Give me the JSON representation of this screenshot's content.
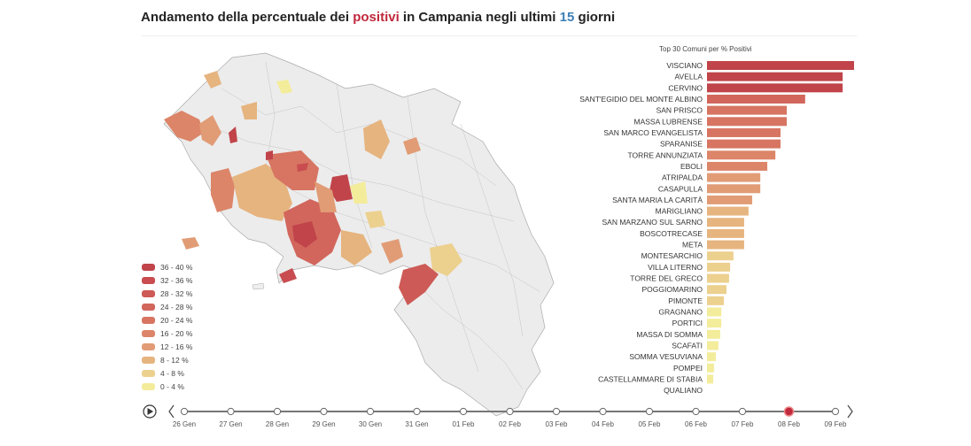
{
  "title": {
    "prefix": "Andamento della percentuale dei ",
    "highlight": "positivi",
    "middle": " in Campania negli ultimi ",
    "days": "15",
    "suffix": " giorni",
    "highlight_color": "#c0283c",
    "days_color": "#3d7fb5"
  },
  "legend": [
    {
      "label": "36 - 40 %",
      "color": "#c0444a"
    },
    {
      "label": "32 - 36 %",
      "color": "#c84c50"
    },
    {
      "label": "28 - 32 %",
      "color": "#cd5a56"
    },
    {
      "label": "24 - 28 %",
      "color": "#d2665c"
    },
    {
      "label": "20 - 24 %",
      "color": "#d77562"
    },
    {
      "label": "16 - 20 %",
      "color": "#dc8569"
    },
    {
      "label": "12 - 16 %",
      "color": "#e19c76"
    },
    {
      "label": "8 - 12 %",
      "color": "#e6b47f"
    },
    {
      "label": "4 - 8 %",
      "color": "#ecd08e"
    },
    {
      "label": "0 - 4 %",
      "color": "#f3ec9a"
    }
  ],
  "chart_data": {
    "type": "bar",
    "orientation": "horizontal",
    "title": "Top 30 Comuni per % Positivi",
    "xlabel": "",
    "ylabel": "",
    "xlim": [
      0,
      40
    ],
    "categories": [
      "VISCIANO",
      "AVELLA",
      "CERVINO",
      "SANT'EGIDIO DEL MONTE ALBINO",
      "SAN PRISCO",
      "MASSA LUBRENSE",
      "SAN MARCO EVANGELISTA",
      "SPARANISE",
      "TORRE ANNUNZIATA",
      "EBOLI",
      "ATRIPALDA",
      "CASAPULLA",
      "SANTA MARIA LA CARITÀ",
      "MARIGLIANO",
      "SAN MARZANO SUL SARNO",
      "BOSCOTRECASE",
      "META",
      "MONTESARCHIO",
      "VILLA LITERNO",
      "TORRE DEL GRECO",
      "POGGIOMARINO",
      "PIMONTE",
      "GRAGNANO",
      "PORTICI",
      "MASSA DI SOMMA",
      "SCAFATI",
      "SOMMA VESUVIANA",
      "POMPEI",
      "CASTELLAMMARE DI STABIA",
      "QUALIANO"
    ],
    "values": [
      40,
      36.9,
      36.9,
      26.7,
      21.7,
      21.7,
      20,
      20,
      18.6,
      16.4,
      14.5,
      14.5,
      12.3,
      11.3,
      10.1,
      10.1,
      10.1,
      7.2,
      6.3,
      6,
      5.3,
      4.6,
      3.9,
      3.9,
      3.6,
      3.1,
      2.4,
      1.9,
      1.7,
      0
    ]
  },
  "timeline": {
    "play_label": "play",
    "dates": [
      "26 Gen",
      "27 Gen",
      "28 Gen",
      "29 Gen",
      "30 Gen",
      "31 Gen",
      "01 Feb",
      "02 Feb",
      "03 Feb",
      "04 Feb",
      "05 Feb",
      "06 Feb",
      "07 Feb",
      "08 Feb",
      "09 Feb"
    ],
    "selected_index": 13,
    "selected_color": "#c0283c"
  }
}
